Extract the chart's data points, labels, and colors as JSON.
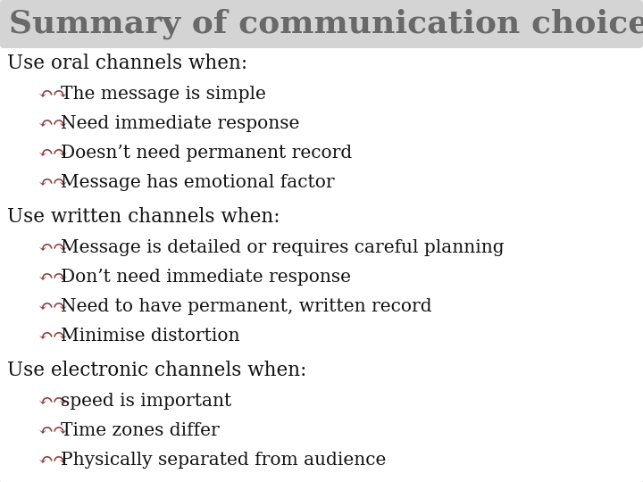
{
  "title": "Summary of communication choices",
  "title_color": "#696969",
  "title_fontsize": 26,
  "background_color": "#ffffff",
  "border_color": "#999999",
  "heading_color": "#111111",
  "heading_fontsize": 15.5,
  "bullet_color": "#8B3A3A",
  "bullet_fontsize": 14.5,
  "bullet_symbol": "↶↷",
  "sections": [
    {
      "heading": "Use oral channels when:",
      "bullets": [
        "The message is simple",
        "Need immediate response",
        "Doesn’t need permanent record",
        "Message has emotional factor"
      ]
    },
    {
      "heading": "Use written channels when:",
      "bullets": [
        "Message is detailed or requires careful planning",
        "Don’t need immediate response",
        "Need to have permanent, written record",
        "Minimise distortion"
      ]
    },
    {
      "heading": "Use electronic channels when:",
      "bullets": [
        "speed is important",
        "Time zones differ",
        "Physically separated from audience"
      ]
    }
  ]
}
